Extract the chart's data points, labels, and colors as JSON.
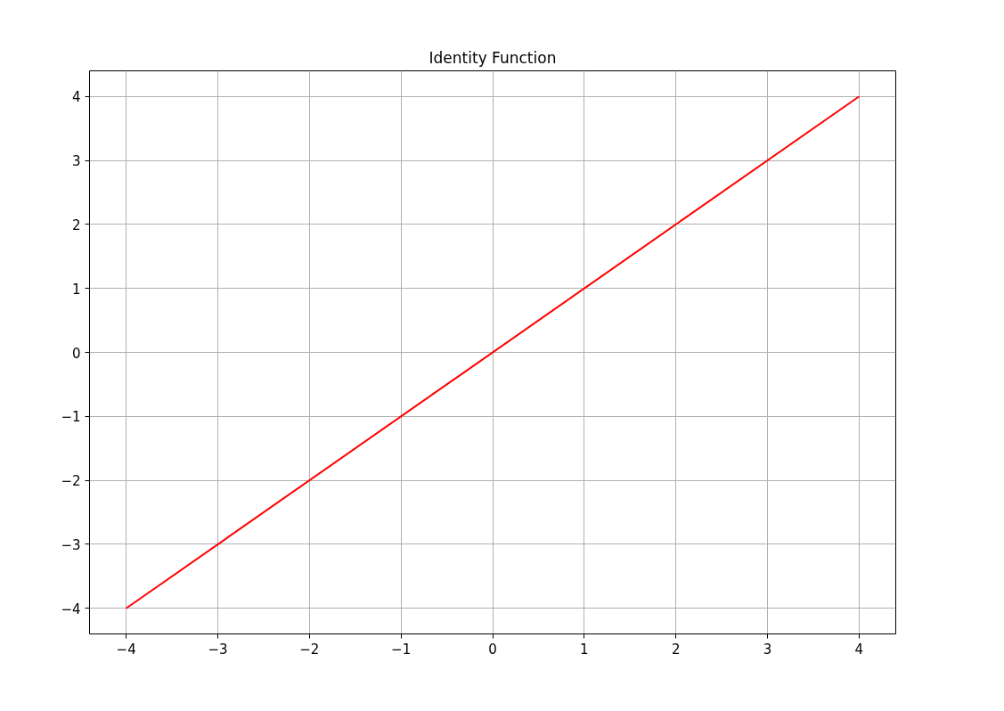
{
  "chart_data": {
    "type": "line",
    "title": "Identity Function",
    "x": [
      -4,
      4
    ],
    "series": [
      {
        "color": "#ff0000",
        "values": [
          -4,
          4
        ]
      }
    ],
    "xlim": [
      -4.4,
      4.4
    ],
    "ylim": [
      -4.4,
      4.4
    ],
    "xticks": [
      {
        "value": -4,
        "label": "−4"
      },
      {
        "value": -3,
        "label": "−3"
      },
      {
        "value": -2,
        "label": "−2"
      },
      {
        "value": -1,
        "label": "−1"
      },
      0,
      1,
      2,
      3,
      4
    ],
    "yticks": [
      {
        "value": -4,
        "label": "−4"
      },
      {
        "value": -3,
        "label": "−3"
      },
      {
        "value": -2,
        "label": "−2"
      },
      {
        "value": -1,
        "label": "−1"
      },
      0,
      1,
      2,
      3,
      4
    ],
    "grid": true,
    "line_style": "solid"
  }
}
